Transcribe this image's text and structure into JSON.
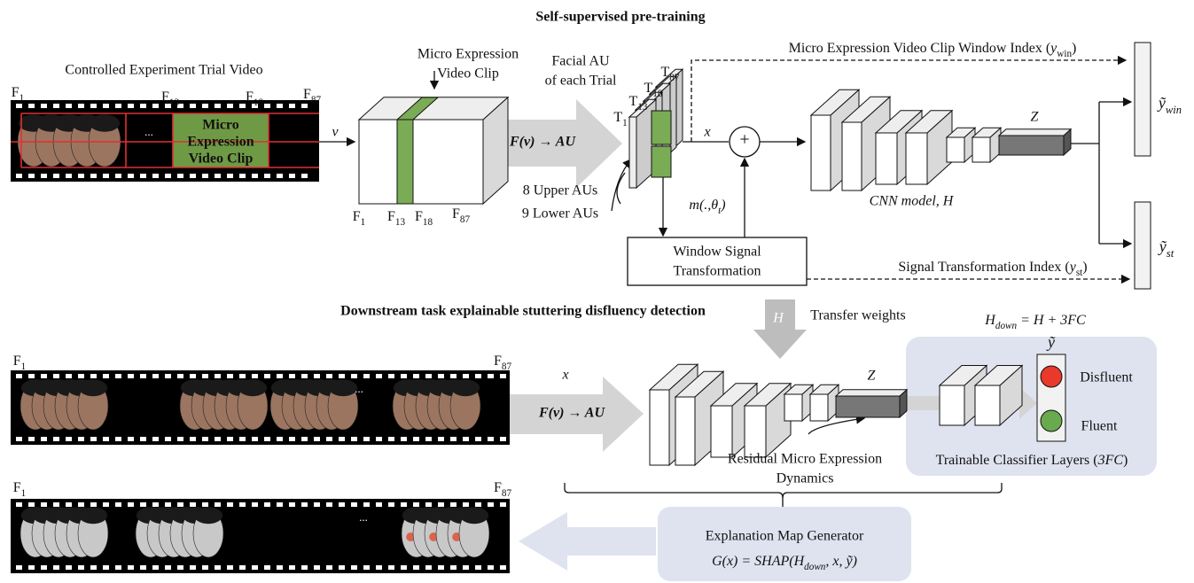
{
  "pretrain": {
    "title": "Self-supervised pre-training",
    "trial_video": {
      "title": "Controlled Experiment Trial Video",
      "frames": [
        [
          {
            "t": "F"
          },
          {
            "s": "1"
          }
        ],
        [
          {
            "t": "F"
          },
          {
            "s": "13"
          }
        ],
        [
          {
            "t": "F"
          },
          {
            "s": "18"
          }
        ],
        [
          {
            "t": "F"
          },
          {
            "s": "87"
          }
        ]
      ],
      "clip": [
        "Micro",
        "Expression",
        "Video Clip"
      ],
      "ellipsis": "..."
    },
    "input_label": "v",
    "clip_cube": {
      "title": [
        "Micro Expression",
        "Video Clip"
      ],
      "frames": [
        [
          {
            "t": "F"
          },
          {
            "s": "1"
          }
        ],
        [
          {
            "t": "F"
          },
          {
            "s": "13"
          }
        ],
        [
          {
            "t": "F"
          },
          {
            "s": "18"
          }
        ],
        [
          {
            "t": "F"
          },
          {
            "s": "87"
          }
        ]
      ]
    },
    "au_mapping": "F(v) → AU",
    "facial_au": {
      "title": [
        "Facial AU",
        "of each Trial"
      ],
      "trials": [
        [
          {
            "t": "T"
          },
          {
            "s": "1"
          }
        ],
        [
          {
            "t": "T"
          },
          {
            "s": "13"
          }
        ],
        [
          {
            "t": "T"
          },
          {
            "s": "18"
          }
        ],
        [
          {
            "t": "T"
          },
          {
            "s": "87"
          }
        ]
      ],
      "upper": "8 Upper AUs",
      "lower": "9 Lower AUs"
    },
    "x_label": "x",
    "sum": "+",
    "transform_fn": [
      {
        "t": "m(.,θ"
      },
      {
        "s": "t"
      },
      {
        "t": ")"
      }
    ],
    "window_box": [
      "Window Signal",
      "Transformation"
    ],
    "window_index": [
      {
        "t": "Micro Expression Video Clip Window Index ("
      },
      {
        "i": "y"
      },
      {
        "s": "win"
      },
      {
        "t": ")"
      }
    ],
    "signal_index": [
      {
        "t": "Signal Transformation Index ("
      },
      {
        "i": "y"
      },
      {
        "s": "st"
      },
      {
        "t": ")"
      }
    ],
    "latent": "Z",
    "cnn": "CNN model, H",
    "out_win": [
      {
        "t": "ỹ"
      },
      {
        "s": "win"
      }
    ],
    "out_st": [
      {
        "t": "ỹ"
      },
      {
        "s": "st"
      }
    ]
  },
  "downstream": {
    "title": "Downstream task explainable stuttering disfluency detection",
    "transfer_symbol": "H",
    "transfer": "Transfer weights",
    "video": {
      "frames": [
        [
          {
            "t": "F"
          },
          {
            "s": "1"
          }
        ],
        [
          {
            "t": "F"
          },
          {
            "s": "87"
          }
        ]
      ],
      "ellipsis": "..."
    },
    "x_label": "x",
    "au_mapping": "F(v) → AU",
    "latent": "Z",
    "residual": [
      "Residual Micro Expression",
      "Dynamics"
    ],
    "h_down": [
      {
        "t": "H"
      },
      {
        "s": "down"
      },
      {
        "t": " = H + 3FC"
      }
    ],
    "prediction": "ỹ",
    "disfluent": "Disfluent",
    "fluent": "Fluent",
    "classifier": [
      {
        "t": "Trainable Classifier Layers ("
      },
      {
        "i": "3FC"
      },
      {
        "t": ")"
      }
    ],
    "explained_video": {
      "frames": [
        [
          {
            "t": "F"
          },
          {
            "s": "1"
          }
        ],
        [
          {
            "t": "F"
          },
          {
            "s": "87"
          }
        ]
      ],
      "ellipsis": "..."
    },
    "explainer": {
      "title": "Explanation Map Generator",
      "formula": [
        {
          "t": "G(x) = SHAP(H"
        },
        {
          "s": "down"
        },
        {
          "t": ", x, ỹ)"
        }
      ]
    }
  }
}
